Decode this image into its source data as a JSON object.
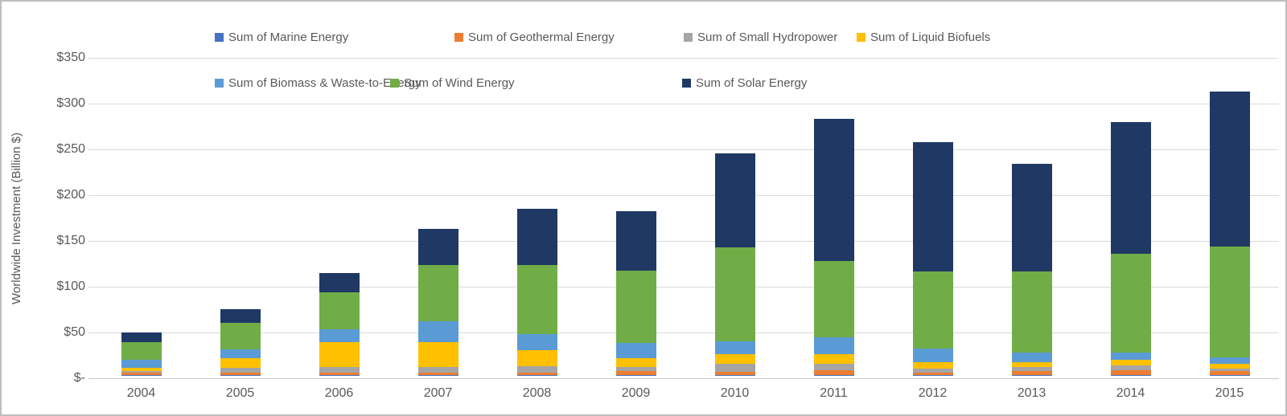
{
  "chart_data": {
    "type": "bar",
    "stacked": true,
    "title": "",
    "xlabel": "",
    "ylabel": "Worldwide Investment (Billion $)",
    "categories": [
      "2004",
      "2005",
      "2006",
      "2007",
      "2008",
      "2009",
      "2010",
      "2011",
      "2012",
      "2013",
      "2014",
      "2015"
    ],
    "series": [
      {
        "name": "Sum of Marine Energy",
        "color": "#4472C4",
        "values": [
          0.1,
          0.1,
          0.2,
          0.2,
          0.2,
          0.3,
          0.3,
          0.3,
          0.3,
          0.3,
          0.4,
          0.3
        ]
      },
      {
        "name": "Sum of Geothermal Energy",
        "color": "#ED7D31",
        "values": [
          2.3,
          2.3,
          2.3,
          2.6,
          2.6,
          3.8,
          3.5,
          4.9,
          2.0,
          4.4,
          4.9,
          3.8
        ]
      },
      {
        "name": "Sum of Small Hydropower",
        "color": "#A5A5A5",
        "values": [
          2.0,
          5.8,
          6.1,
          5.8,
          6.7,
          5.0,
          8.7,
          7.3,
          4.4,
          4.4,
          5.2,
          2.9
        ]
      },
      {
        "name": "Sum of Liquid Biofuels",
        "color": "#FFC000",
        "values": [
          3.5,
          10.0,
          27.4,
          27.6,
          18.0,
          9.6,
          10.2,
          10.1,
          7.6,
          5.2,
          5.8,
          5.0
        ]
      },
      {
        "name": "Sum of Biomass & Waste-to-Energy",
        "color": "#5B9BD5",
        "values": [
          8.5,
          10.1,
          14.2,
          22.7,
          16.9,
          16.6,
          14.0,
          19.0,
          14.5,
          10.2,
          8.7,
          7.2
        ]
      },
      {
        "name": "Sum of Wind Energy",
        "color": "#70AD47",
        "values": [
          19.9,
          28.5,
          40.2,
          61.1,
          76.2,
          78.6,
          102.4,
          82.9,
          84.2,
          88.8,
          107.6,
          120.8
        ]
      },
      {
        "name": "Sum of Solar Energy",
        "color": "#1F3864",
        "values": [
          10.5,
          15.4,
          21.2,
          39.3,
          61.4,
          64.9,
          103.3,
          155.1,
          141.1,
          117.8,
          144.0,
          169.6
        ]
      }
    ],
    "y_ticks": [
      "$-",
      "$50",
      "$100",
      "$150",
      "$200",
      "$250",
      "$300",
      "$350"
    ],
    "y_tick_values": [
      0,
      50,
      100,
      150,
      200,
      250,
      300,
      350
    ],
    "ylim": [
      0,
      350
    ],
    "grid": "horizontal",
    "legend_position": "top"
  },
  "colors": {
    "background": "#FFFFFF",
    "gridline": "#D9D9D9",
    "axis_line": "#C6C6C6",
    "text": "#595959",
    "border": "#BEBEBE"
  }
}
